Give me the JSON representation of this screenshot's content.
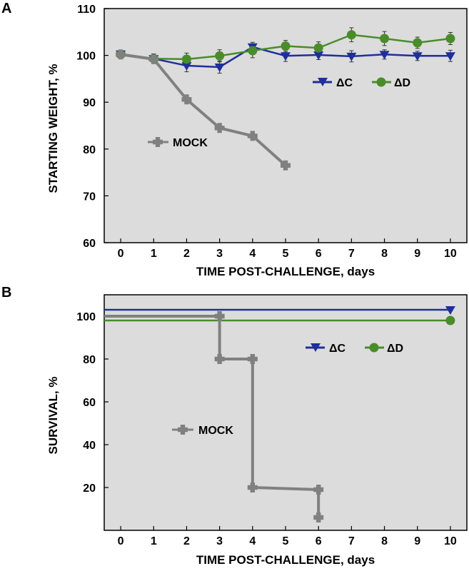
{
  "chart_data": [
    {
      "panel": "A",
      "type": "line",
      "xlabel": "TIME POST-CHALLENGE, days",
      "ylabel": "STARTING WEIGHT, %",
      "xlim": [
        -0.5,
        10.5
      ],
      "ylim": [
        60,
        110
      ],
      "xticks": [
        0,
        1,
        2,
        3,
        4,
        5,
        6,
        7,
        8,
        9,
        10
      ],
      "yticks": [
        60,
        70,
        80,
        90,
        100,
        110
      ],
      "grid": false,
      "series": [
        {
          "name": "ΔC",
          "color": "#1f2f9a",
          "marker": "triangle-down",
          "x": [
            0,
            1,
            2,
            3,
            4,
            5,
            6,
            7,
            8,
            9,
            10
          ],
          "y": [
            100.3,
            99.3,
            97.8,
            97.5,
            101.8,
            99.9,
            100.1,
            99.8,
            100.2,
            99.9,
            99.9
          ],
          "err": [
            0.6,
            1.0,
            1.3,
            1.3,
            1.0,
            1.2,
            1.0,
            1.2,
            1.0,
            1.0,
            1.2
          ]
        },
        {
          "name": "ΔD",
          "color": "#4a8c2a",
          "marker": "circle",
          "x": [
            0,
            1,
            2,
            3,
            4,
            5,
            6,
            7,
            8,
            9,
            10
          ],
          "y": [
            100.2,
            99.3,
            99.2,
            99.9,
            101.0,
            102.0,
            101.6,
            104.4,
            103.6,
            102.7,
            103.6
          ],
          "err": [
            0.6,
            1.0,
            1.3,
            1.3,
            1.5,
            1.2,
            1.3,
            1.5,
            1.5,
            1.2,
            1.3
          ]
        },
        {
          "name": "MOCK",
          "color": "#808080",
          "marker": "cross",
          "x": [
            0,
            1,
            2,
            3,
            4,
            5
          ],
          "y": [
            100.2,
            99.2,
            90.6,
            84.5,
            82.8,
            76.5
          ],
          "err": [
            0.5,
            0.8,
            0.8,
            0.8,
            0.8,
            0.8
          ]
        }
      ]
    },
    {
      "panel": "B",
      "type": "line",
      "xlabel": "TIME POST-CHALLENGE, days",
      "ylabel": "SURVIVAL, %",
      "xlim": [
        -0.5,
        10.5
      ],
      "ylim": [
        0,
        110
      ],
      "xticks": [
        0,
        1,
        2,
        3,
        4,
        5,
        6,
        7,
        8,
        9,
        10
      ],
      "yticks": [
        20,
        40,
        60,
        80,
        100
      ],
      "grid": false,
      "series": [
        {
          "name": "ΔC",
          "color": "#1f2f9a",
          "marker": "triangle-down",
          "step": true,
          "x": [
            -0.5,
            10
          ],
          "y": [
            103,
            103
          ]
        },
        {
          "name": "ΔD",
          "color": "#4a8c2a",
          "marker": "circle",
          "step": true,
          "x": [
            -0.5,
            10
          ],
          "y": [
            98,
            98
          ]
        },
        {
          "name": "MOCK",
          "color": "#808080",
          "marker": "cross",
          "step": true,
          "x": [
            -0.5,
            3,
            3,
            4,
            4,
            6,
            6
          ],
          "y": [
            100,
            100,
            80,
            80,
            20,
            19,
            6
          ]
        }
      ]
    }
  ],
  "panels": {
    "A": {
      "label": "A",
      "legend": {
        "dc": "ΔC",
        "dd": "ΔD",
        "mock": "MOCK"
      }
    },
    "B": {
      "label": "B",
      "legend": {
        "dc": "ΔC",
        "dd": "ΔD",
        "mock": "MOCK"
      }
    }
  }
}
